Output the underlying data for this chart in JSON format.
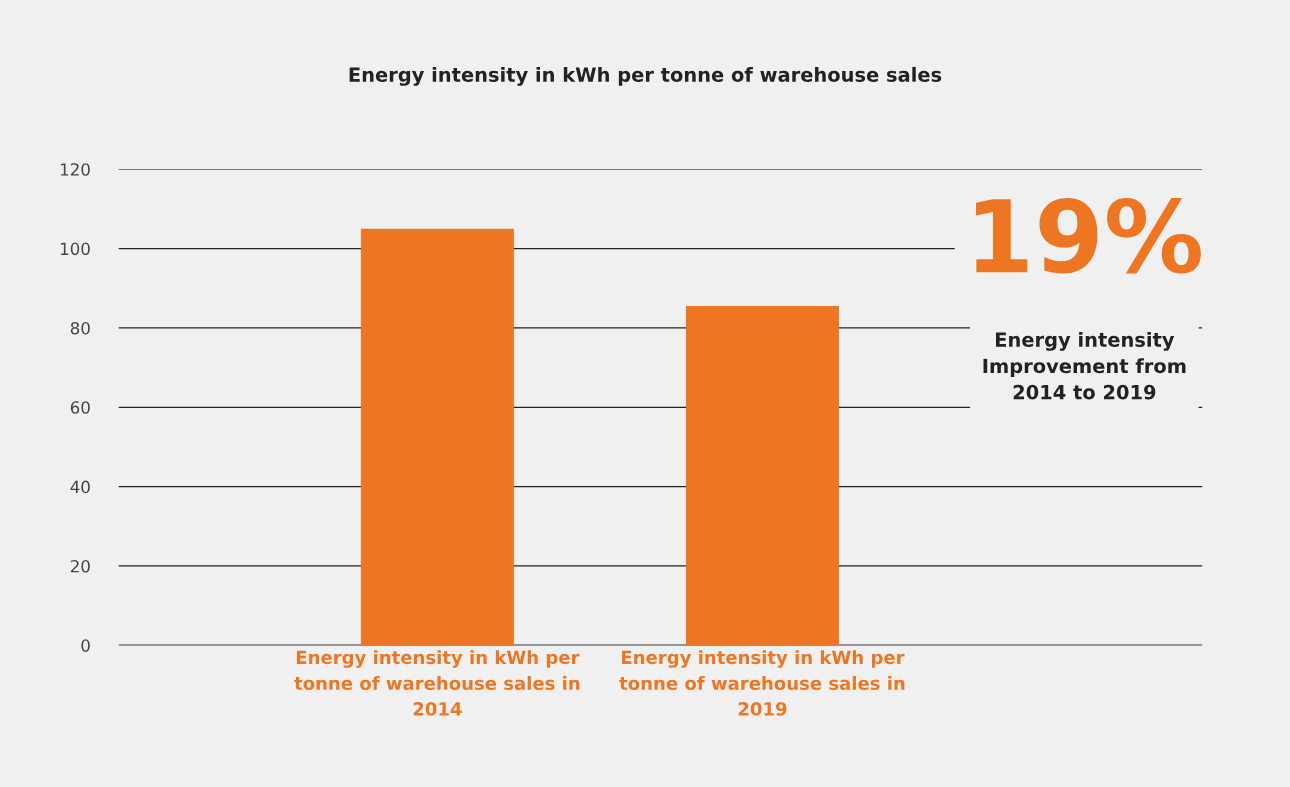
{
  "chart_data": {
    "type": "bar",
    "title": "Energy intensity in kWh per tonne of warehouse sales",
    "categories": [
      "Energy intensity in kWh per tonne of warehouse sales in 2014",
      "Energy intensity in kWh per tonne of warehouse sales in 2019"
    ],
    "values": [
      105,
      85.5
    ],
    "color": "#ee7623",
    "ylim": [
      0,
      120
    ],
    "yticks": [
      0,
      20,
      40,
      60,
      80,
      100,
      120
    ],
    "grid": "y",
    "annotations": [
      "19%",
      "Energy intensity\nImprovement from\n2014 to 2019"
    ]
  }
}
